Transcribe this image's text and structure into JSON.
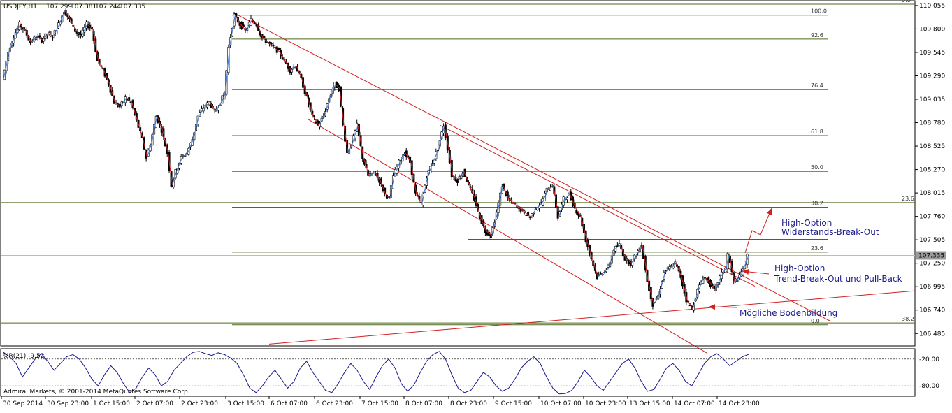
{
  "header": {
    "symbol": "USDJPY,H1",
    "open": "107.299",
    "high": "107.381",
    "low": "107.244",
    "close": "107.335"
  },
  "current_price_label": "107.335",
  "chart_data": [
    {
      "type": "candlestick",
      "title": "USDJPY,H1",
      "x_tick_labels": [
        "30 Sep 2014",
        "30 Sep 23:00",
        "1 Oct 15:00",
        "2 Oct 07:00",
        "2 Oct 23:00",
        "3 Oct 15:00",
        "6 Oct 07:00",
        "6 Oct 23:00",
        "7 Oct 15:00",
        "8 Oct 07:00",
        "8 Oct 23:00",
        "9 Oct 15:00",
        "10 Oct 07:00",
        "10 Oct 23:00",
        "13 Oct 15:00",
        "14 Oct 07:00",
        "14 Oct 23:00"
      ],
      "y_tick_labels": [
        "110.055",
        "109.800",
        "109.545",
        "109.290",
        "109.035",
        "108.780",
        "108.525",
        "108.270",
        "108.015",
        "107.760",
        "107.505",
        "107.250",
        "106.995",
        "106.740",
        "106.485"
      ],
      "ylim": [
        106.35,
        110.1
      ],
      "price_path": [
        [
          0,
          109.25
        ],
        [
          8,
          109.55
        ],
        [
          16,
          109.72
        ],
        [
          24,
          109.85
        ],
        [
          32,
          109.78
        ],
        [
          40,
          109.65
        ],
        [
          48,
          109.72
        ],
        [
          56,
          109.68
        ],
        [
          64,
          109.75
        ],
        [
          72,
          109.72
        ],
        [
          80,
          109.85
        ],
        [
          88,
          110.0
        ],
        [
          96,
          109.9
        ],
        [
          104,
          109.78
        ],
        [
          112,
          109.72
        ],
        [
          120,
          109.85
        ],
        [
          128,
          109.8
        ],
        [
          136,
          109.45
        ],
        [
          144,
          109.35
        ],
        [
          152,
          109.2
        ],
        [
          160,
          109.0
        ],
        [
          168,
          108.95
        ],
        [
          176,
          109.05
        ],
        [
          184,
          109.0
        ],
        [
          192,
          108.8
        ],
        [
          200,
          108.6
        ],
        [
          206,
          108.4
        ],
        [
          212,
          108.55
        ],
        [
          220,
          108.85
        ],
        [
          228,
          108.7
        ],
        [
          236,
          108.45
        ],
        [
          242,
          108.1
        ],
        [
          248,
          108.25
        ],
        [
          256,
          108.4
        ],
        [
          264,
          108.45
        ],
        [
          272,
          108.6
        ],
        [
          280,
          108.85
        ],
        [
          288,
          108.95
        ],
        [
          296,
          109.0
        ],
        [
          304,
          108.9
        ],
        [
          312,
          109.0
        ],
        [
          318,
          109.1
        ],
        [
          324,
          109.6
        ],
        [
          332,
          109.95
        ],
        [
          340,
          109.85
        ],
        [
          348,
          109.78
        ],
        [
          356,
          109.9
        ],
        [
          364,
          109.85
        ],
        [
          372,
          109.7
        ],
        [
          380,
          109.65
        ],
        [
          388,
          109.6
        ],
        [
          396,
          109.55
        ],
        [
          404,
          109.45
        ],
        [
          412,
          109.35
        ],
        [
          420,
          109.4
        ],
        [
          428,
          109.25
        ],
        [
          436,
          109.05
        ],
        [
          444,
          108.85
        ],
        [
          452,
          108.75
        ],
        [
          460,
          108.85
        ],
        [
          468,
          109.05
        ],
        [
          476,
          109.2
        ],
        [
          482,
          109.15
        ],
        [
          488,
          108.75
        ],
        [
          494,
          108.45
        ],
        [
          500,
          108.55
        ],
        [
          508,
          108.75
        ],
        [
          516,
          108.4
        ],
        [
          524,
          108.2
        ],
        [
          532,
          108.25
        ],
        [
          540,
          108.15
        ],
        [
          548,
          108.0
        ],
        [
          554,
          107.95
        ],
        [
          560,
          108.2
        ],
        [
          568,
          108.35
        ],
        [
          576,
          108.45
        ],
        [
          584,
          108.35
        ],
        [
          592,
          108.0
        ],
        [
          600,
          107.9
        ],
        [
          608,
          108.2
        ],
        [
          616,
          108.35
        ],
        [
          624,
          108.5
        ],
        [
          632,
          108.75
        ],
        [
          638,
          108.5
        ],
        [
          644,
          108.2
        ],
        [
          652,
          108.15
        ],
        [
          660,
          108.25
        ],
        [
          668,
          108.1
        ],
        [
          676,
          107.95
        ],
        [
          684,
          107.75
        ],
        [
          692,
          107.6
        ],
        [
          700,
          107.55
        ],
        [
          708,
          107.8
        ],
        [
          716,
          108.1
        ],
        [
          724,
          107.95
        ],
        [
          732,
          107.9
        ],
        [
          740,
          107.85
        ],
        [
          748,
          107.8
        ],
        [
          756,
          107.75
        ],
        [
          764,
          107.85
        ],
        [
          772,
          107.9
        ],
        [
          780,
          108.05
        ],
        [
          788,
          108.1
        ],
        [
          796,
          107.75
        ],
        [
          804,
          107.95
        ],
        [
          812,
          108.0
        ],
        [
          820,
          107.85
        ],
        [
          828,
          107.75
        ],
        [
          836,
          107.5
        ],
        [
          844,
          107.3
        ],
        [
          852,
          107.1
        ],
        [
          860,
          107.15
        ],
        [
          868,
          107.2
        ],
        [
          876,
          107.4
        ],
        [
          884,
          107.45
        ],
        [
          892,
          107.3
        ],
        [
          900,
          107.25
        ],
        [
          908,
          107.35
        ],
        [
          916,
          107.45
        ],
        [
          924,
          107.05
        ],
        [
          932,
          106.8
        ],
        [
          940,
          106.9
        ],
        [
          948,
          107.15
        ],
        [
          956,
          107.2
        ],
        [
          964,
          107.25
        ],
        [
          972,
          107.1
        ],
        [
          980,
          106.85
        ],
        [
          988,
          106.75
        ],
        [
          996,
          106.95
        ],
        [
          1004,
          107.1
        ],
        [
          1012,
          107.05
        ],
        [
          1020,
          106.95
        ],
        [
          1028,
          107.1
        ],
        [
          1036,
          107.2
        ],
        [
          1040,
          107.35
        ],
        [
          1048,
          107.05
        ],
        [
          1056,
          107.1
        ],
        [
          1064,
          107.25
        ],
        [
          1068,
          107.335
        ]
      ],
      "fibonacci_levels": [
        {
          "label": "100.0",
          "price": 109.95
        },
        {
          "label": "92.6",
          "price": 109.69
        },
        {
          "label": "76.4",
          "price": 109.14
        },
        {
          "label": "61.8",
          "price": 108.64
        },
        {
          "label": "50.0",
          "price": 108.25
        },
        {
          "label": "38.2",
          "price": 107.86
        },
        {
          "label": "23.6",
          "price": 107.37
        },
        {
          "label": "0.0",
          "price": 106.58
        }
      ],
      "outer_fibonacci_levels": [
        {
          "label": "0.0",
          "price": 110.07
        },
        {
          "label": "23.6",
          "price": 107.91
        },
        {
          "label": "38.2",
          "price": 106.6
        }
      ],
      "resistance_level": 107.51,
      "annotations": [
        {
          "line1": "High-Option",
          "line2": "Widerstands-Break-Out"
        },
        {
          "line1": "High-Option",
          "line2": "Trend-Break-Out und Pull-Back"
        },
        {
          "line1": "Mögliche Bodenbildung"
        }
      ],
      "watermark": "Admiral Markets, © 2001-2014 MetaQuotes Software Corp."
    },
    {
      "type": "line",
      "title": "%R(21) -9.52",
      "indicator": "%R(21)",
      "value": "-9.52",
      "y_tick_labels": [
        "-20.00",
        "-80.00"
      ],
      "ylim": [
        -100,
        0
      ],
      "values": [
        -5,
        -15,
        -30,
        -60,
        -40,
        -20,
        -8,
        -25,
        -45,
        -30,
        -15,
        -10,
        -20,
        -40,
        -65,
        -80,
        -55,
        -35,
        -50,
        -75,
        -95,
        -85,
        -60,
        -40,
        -55,
        -80,
        -70,
        -45,
        -30,
        -15,
        -5,
        -3,
        -8,
        -12,
        -6,
        -10,
        -18,
        -30,
        -55,
        -85,
        -95,
        -80,
        -60,
        -45,
        -65,
        -85,
        -70,
        -40,
        -25,
        -50,
        -70,
        -90,
        -95,
        -75,
        -50,
        -30,
        -45,
        -70,
        -88,
        -60,
        -35,
        -20,
        -40,
        -75,
        -92,
        -78,
        -50,
        -25,
        -10,
        -3,
        -20,
        -55,
        -85,
        -95,
        -90,
        -70,
        -50,
        -60,
        -80,
        -92,
        -85,
        -65,
        -40,
        -25,
        -15,
        -30,
        -60,
        -85,
        -98,
        -97,
        -90,
        -70,
        -45,
        -60,
        -80,
        -90,
        -70,
        -50,
        -30,
        -20,
        -40,
        -70,
        -92,
        -88,
        -65,
        -40,
        -30,
        -45,
        -70,
        -80,
        -55,
        -30,
        -15,
        -8,
        -20,
        -35,
        -25,
        -15,
        -9.52
      ]
    }
  ],
  "colors": {
    "bull_candle": "#ffffff",
    "bear_candle": "#000000",
    "zigzag_up": "#3d7ad6",
    "zigzag_down": "#d21f1f",
    "trend_line": "#d21f1f",
    "fib_line": "#4f6b1f",
    "annotation_text": "#1a1a8a",
    "indicator_line": "#1a1a8a"
  }
}
